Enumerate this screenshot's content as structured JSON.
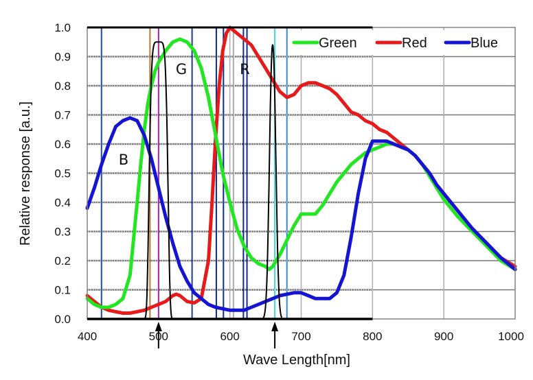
{
  "chart_data": {
    "type": "line",
    "title": "",
    "xlabel": "Wave Length[nm]",
    "ylabel": "Relative response [a.u.]",
    "xlim": [
      400,
      1000
    ],
    "ylim": [
      0.0,
      1.0
    ],
    "x_ticks": [
      "400",
      "500",
      "600",
      "700",
      "800",
      "900",
      "1000"
    ],
    "y_ticks": [
      "0.0",
      "0.1",
      "0.2",
      "0.3",
      "0.4",
      "0.5",
      "0.6",
      "0.7",
      "0.8",
      "0.9",
      "1.0"
    ],
    "grid": true,
    "legend": {
      "placement": "top-right",
      "entries": [
        "Green",
        "Red",
        "Blue"
      ]
    },
    "series": [
      {
        "name": "Green",
        "color": "#22e622",
        "x": [
          400,
          410,
          420,
          430,
          440,
          450,
          460,
          470,
          475,
          480,
          485,
          490,
          495,
          500,
          510,
          520,
          530,
          540,
          550,
          560,
          570,
          580,
          590,
          600,
          610,
          620,
          630,
          640,
          650,
          655,
          660,
          670,
          680,
          690,
          700,
          710,
          720,
          730,
          740,
          750,
          760,
          770,
          780,
          790,
          800,
          810,
          820,
          830,
          840,
          850,
          860,
          870,
          880,
          890,
          900,
          920,
          940,
          960,
          980,
          1000
        ],
        "y": [
          0.07,
          0.05,
          0.04,
          0.04,
          0.05,
          0.07,
          0.15,
          0.4,
          0.53,
          0.65,
          0.74,
          0.8,
          0.85,
          0.88,
          0.92,
          0.95,
          0.96,
          0.95,
          0.92,
          0.86,
          0.76,
          0.63,
          0.5,
          0.4,
          0.31,
          0.25,
          0.21,
          0.19,
          0.18,
          0.17,
          0.18,
          0.22,
          0.27,
          0.32,
          0.36,
          0.36,
          0.36,
          0.39,
          0.43,
          0.47,
          0.5,
          0.53,
          0.55,
          0.57,
          0.58,
          0.59,
          0.6,
          0.6,
          0.59,
          0.58,
          0.56,
          0.53,
          0.49,
          0.45,
          0.41,
          0.35,
          0.3,
          0.25,
          0.2,
          0.17
        ]
      },
      {
        "name": "Red",
        "color": "#e61a1a",
        "x": [
          400,
          410,
          420,
          430,
          440,
          450,
          460,
          470,
          480,
          490,
          500,
          510,
          520,
          525,
          530,
          540,
          550,
          560,
          570,
          575,
          580,
          585,
          590,
          595,
          600,
          605,
          610,
          620,
          630,
          640,
          650,
          660,
          670,
          680,
          690,
          700,
          710,
          720,
          730,
          740,
          750,
          760,
          770,
          780,
          790,
          800,
          810,
          820,
          830,
          840,
          850,
          860,
          870,
          880,
          890,
          900,
          920,
          940,
          960,
          980,
          1000
        ],
        "y": [
          0.08,
          0.06,
          0.04,
          0.03,
          0.025,
          0.02,
          0.02,
          0.025,
          0.03,
          0.04,
          0.05,
          0.06,
          0.08,
          0.085,
          0.08,
          0.06,
          0.055,
          0.07,
          0.2,
          0.4,
          0.62,
          0.8,
          0.92,
          0.98,
          1.0,
          0.99,
          0.98,
          0.96,
          0.94,
          0.9,
          0.86,
          0.82,
          0.78,
          0.76,
          0.77,
          0.8,
          0.81,
          0.81,
          0.8,
          0.79,
          0.77,
          0.74,
          0.71,
          0.7,
          0.68,
          0.67,
          0.65,
          0.64,
          0.62,
          0.6,
          0.58,
          0.56,
          0.53,
          0.5,
          0.46,
          0.43,
          0.37,
          0.31,
          0.26,
          0.21,
          0.18
        ]
      },
      {
        "name": "Blue",
        "color": "#1414d2",
        "x": [
          400,
          410,
          420,
          430,
          440,
          450,
          460,
          470,
          480,
          490,
          500,
          510,
          520,
          530,
          540,
          550,
          560,
          570,
          580,
          590,
          600,
          610,
          620,
          630,
          640,
          650,
          660,
          670,
          680,
          690,
          700,
          710,
          720,
          730,
          740,
          750,
          760,
          770,
          780,
          790,
          800,
          810,
          820,
          830,
          840,
          850,
          860,
          870,
          880,
          890,
          900,
          920,
          940,
          960,
          980,
          1000
        ],
        "y": [
          0.38,
          0.45,
          0.53,
          0.6,
          0.66,
          0.68,
          0.69,
          0.68,
          0.63,
          0.55,
          0.45,
          0.35,
          0.26,
          0.18,
          0.13,
          0.09,
          0.07,
          0.05,
          0.04,
          0.035,
          0.03,
          0.03,
          0.03,
          0.04,
          0.05,
          0.06,
          0.07,
          0.08,
          0.085,
          0.09,
          0.09,
          0.08,
          0.07,
          0.07,
          0.07,
          0.09,
          0.15,
          0.28,
          0.43,
          0.55,
          0.61,
          0.61,
          0.61,
          0.6,
          0.59,
          0.58,
          0.56,
          0.53,
          0.5,
          0.46,
          0.43,
          0.37,
          0.31,
          0.26,
          0.21,
          0.17
        ]
      }
    ],
    "filter_peaks": [
      {
        "name": "filter-500",
        "center": 500,
        "peak": 0.95,
        "halfwidth": 14,
        "color": "#000000"
      },
      {
        "name": "filter-660",
        "center": 660,
        "peak": 0.94,
        "halfwidth": 6,
        "color": "#000000"
      }
    ],
    "marker_lines": [
      {
        "x": 420,
        "color": "#1b4aa8"
      },
      {
        "x": 488,
        "color": "#b07a3a"
      },
      {
        "x": 500,
        "color": "#b01ab8"
      },
      {
        "x": 547,
        "color": "#1b3a9a"
      },
      {
        "x": 581,
        "color": "#0e2a8a"
      },
      {
        "x": 591,
        "color": "#0e2a8a"
      },
      {
        "x": 605,
        "color": "#aaaaaa"
      },
      {
        "x": 619,
        "color": "#0e2a8a"
      },
      {
        "x": 624,
        "color": "#0e2a8a"
      },
      {
        "x": 663,
        "color": "#40d8e0"
      },
      {
        "x": 680,
        "color": "#3a8abf"
      }
    ],
    "annotations": [
      {
        "text": "G",
        "x": 532,
        "y": 0.84
      },
      {
        "text": "R",
        "x": 621,
        "y": 0.84
      },
      {
        "text": "B",
        "x": 451,
        "y": 0.53
      }
    ],
    "arrows_at_x": [
      500,
      663
    ]
  }
}
